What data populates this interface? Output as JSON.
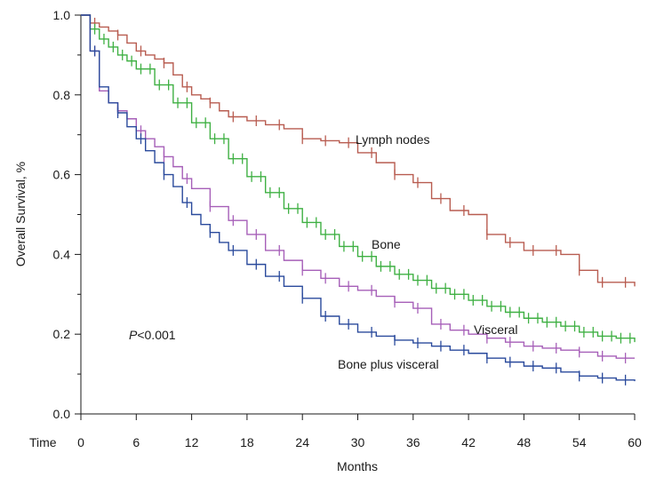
{
  "chart_data": {
    "type": "line",
    "xlabel": "Months",
    "ylabel": "Overall Survival, %",
    "x_prefix_label": "Time",
    "xlim": [
      0,
      60
    ],
    "ylim": [
      0,
      1
    ],
    "x_ticks": [
      0,
      6,
      12,
      18,
      24,
      30,
      36,
      42,
      48,
      54,
      60
    ],
    "y_ticks": [
      0.0,
      0.2,
      0.4,
      0.6,
      0.8,
      1.0
    ],
    "y_tick_labels": [
      "0.0",
      "0.2",
      "0.4",
      "0.6",
      "0.8",
      "1.0"
    ],
    "annotation": {
      "italic": "P",
      "rest": "<0.001"
    },
    "grid": false,
    "series": [
      {
        "name": "Lymph nodes",
        "color": "#b85c50",
        "x": [
          0,
          1,
          2,
          3,
          4,
          5,
          6,
          7,
          8,
          9,
          10,
          11,
          12,
          13,
          14,
          15,
          16,
          18,
          20,
          22,
          24,
          26,
          28,
          30,
          32,
          34,
          36,
          38,
          40,
          42,
          44,
          46,
          48,
          50,
          52,
          54,
          56,
          58,
          60
        ],
        "y": [
          1.0,
          0.98,
          0.97,
          0.96,
          0.95,
          0.93,
          0.91,
          0.9,
          0.89,
          0.88,
          0.85,
          0.82,
          0.8,
          0.79,
          0.78,
          0.76,
          0.745,
          0.735,
          0.725,
          0.715,
          0.69,
          0.685,
          0.68,
          0.655,
          0.63,
          0.6,
          0.58,
          0.54,
          0.51,
          0.5,
          0.45,
          0.43,
          0.41,
          0.41,
          0.4,
          0.36,
          0.33,
          0.33,
          0.32
        ]
      },
      {
        "name": "Bone",
        "color": "#3fb043",
        "x": [
          0,
          1,
          2,
          3,
          4,
          5,
          6,
          8,
          10,
          12,
          14,
          16,
          18,
          20,
          22,
          24,
          26,
          28,
          30,
          32,
          34,
          36,
          38,
          40,
          42,
          44,
          46,
          48,
          50,
          52,
          54,
          56,
          58,
          60
        ],
        "y": [
          1.0,
          0.965,
          0.94,
          0.92,
          0.9,
          0.885,
          0.865,
          0.825,
          0.78,
          0.73,
          0.69,
          0.64,
          0.595,
          0.555,
          0.515,
          0.48,
          0.45,
          0.42,
          0.395,
          0.37,
          0.35,
          0.335,
          0.315,
          0.3,
          0.285,
          0.27,
          0.255,
          0.24,
          0.23,
          0.22,
          0.205,
          0.195,
          0.19,
          0.18
        ]
      },
      {
        "name": "Visceral",
        "color": "#a65fb8",
        "x": [
          0,
          1,
          2,
          3,
          4,
          5,
          6,
          7,
          8,
          9,
          10,
          11,
          12,
          14,
          16,
          18,
          20,
          22,
          24,
          26,
          28,
          30,
          32,
          34,
          36,
          38,
          40,
          42,
          44,
          46,
          48,
          50,
          52,
          54,
          56,
          58,
          60
        ],
        "y": [
          1.0,
          0.91,
          0.81,
          0.78,
          0.76,
          0.74,
          0.71,
          0.69,
          0.67,
          0.645,
          0.62,
          0.59,
          0.565,
          0.52,
          0.485,
          0.45,
          0.41,
          0.385,
          0.36,
          0.34,
          0.32,
          0.31,
          0.295,
          0.28,
          0.265,
          0.225,
          0.21,
          0.2,
          0.19,
          0.18,
          0.17,
          0.165,
          0.16,
          0.155,
          0.145,
          0.14,
          0.14
        ]
      },
      {
        "name": "Bone plus visceral",
        "color": "#2a4a9c",
        "x": [
          0,
          1,
          2,
          3,
          4,
          5,
          6,
          7,
          8,
          9,
          10,
          11,
          12,
          13,
          14,
          15,
          16,
          18,
          20,
          22,
          24,
          26,
          28,
          30,
          32,
          34,
          36,
          38,
          40,
          42,
          44,
          46,
          48,
          50,
          52,
          54,
          56,
          58,
          60
        ],
        "y": [
          1.0,
          0.91,
          0.82,
          0.78,
          0.755,
          0.72,
          0.69,
          0.66,
          0.63,
          0.6,
          0.57,
          0.53,
          0.5,
          0.475,
          0.455,
          0.43,
          0.41,
          0.375,
          0.345,
          0.32,
          0.29,
          0.245,
          0.225,
          0.205,
          0.195,
          0.185,
          0.178,
          0.17,
          0.16,
          0.152,
          0.14,
          0.13,
          0.12,
          0.115,
          0.105,
          0.095,
          0.09,
          0.085,
          0.082
        ]
      }
    ]
  }
}
